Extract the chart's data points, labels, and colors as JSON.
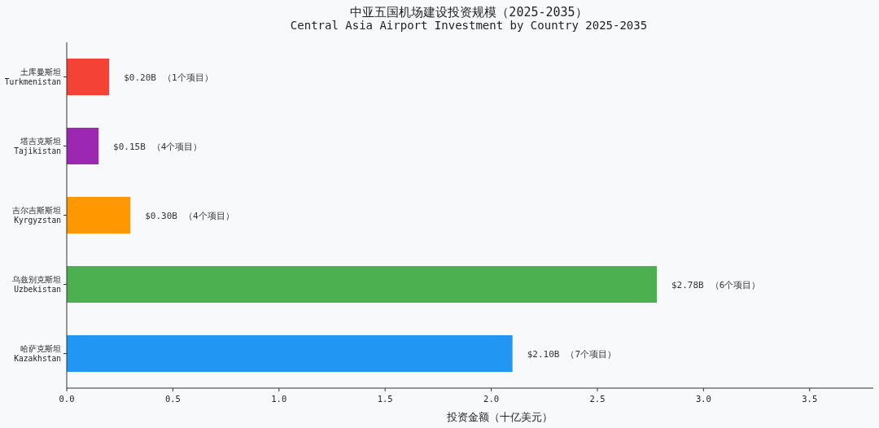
{
  "chart_data": {
    "type": "bar",
    "orientation": "horizontal",
    "title": "中亚五国机场建设投资规模（2025-2035）",
    "subtitle": "Central Asia Airport Investment by Country 2025-2035",
    "xlabel": "投资金额（十亿美元）",
    "categories": [
      "土库曼斯坦\nTurkmenistan",
      "塔吉克斯坦\nTajikistan",
      "吉尔吉斯斯坦\nKyrgyzstan",
      "乌兹别克斯坦\nUzbekistan",
      "哈萨克斯坦\nKazakhstan"
    ],
    "values": [
      0.2,
      0.15,
      0.3,
      2.78,
      2.1
    ],
    "colors": [
      "#f44336",
      "#9c27b0",
      "#ff9800",
      "#4caf50",
      "#2196f3"
    ],
    "value_labels": [
      "$0.20B",
      "$0.15B",
      "$0.30B",
      "$2.78B",
      "$2.10B"
    ],
    "annotations": [
      "（1个项目）",
      "（4个项目）",
      "（4个项目）",
      "（6个项目）",
      "（7个项目）"
    ],
    "xlim": [
      0,
      3.8
    ],
    "xticks": [
      {
        "value": 0,
        "label": "0.0"
      },
      {
        "value": 0.5,
        "label": "0.5"
      },
      {
        "value": 1,
        "label": "1.0"
      },
      {
        "value": 1.5,
        "label": "1.5"
      },
      {
        "value": 2,
        "label": "2.0"
      },
      {
        "value": 2.5,
        "label": "2.5"
      },
      {
        "value": 3,
        "label": "3.0"
      },
      {
        "value": 3.5,
        "label": "3.5"
      }
    ]
  }
}
